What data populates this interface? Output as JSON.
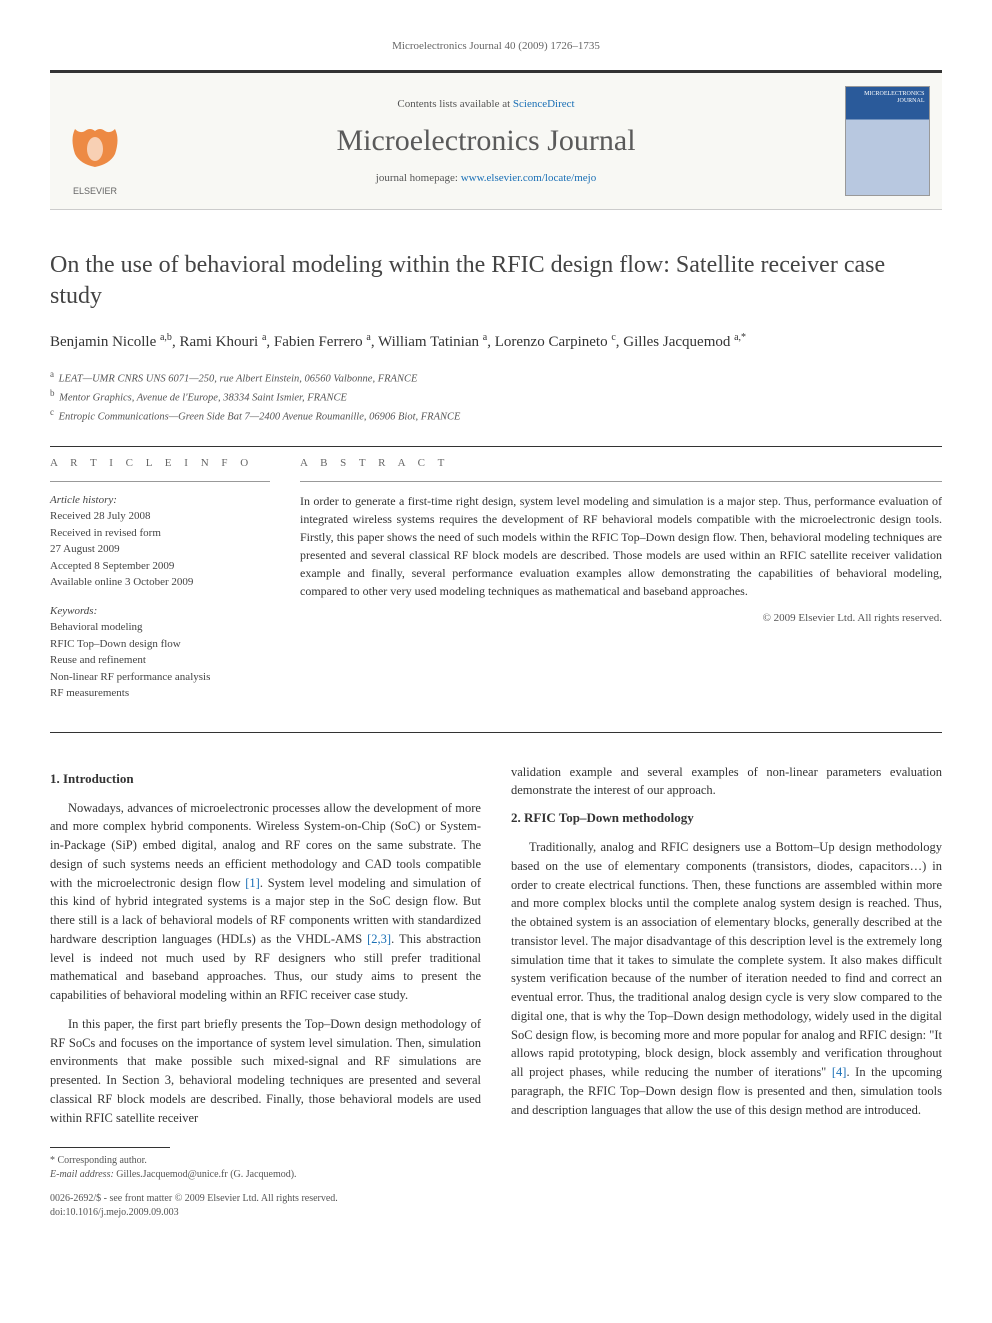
{
  "running_head": "Microelectronics Journal 40 (2009) 1726–1735",
  "banner": {
    "contents_prefix": "Contents lists available at ",
    "contents_link": "ScienceDirect",
    "journal_name": "Microelectronics Journal",
    "homepage_prefix": "journal homepage: ",
    "homepage_link": "www.elsevier.com/locate/mejo",
    "cover_label": "MICROELECTRONICS JOURNAL"
  },
  "title": "On the use of behavioral modeling within the RFIC design flow: Satellite receiver case study",
  "authors_html": "Benjamin Nicolle <sup>a,b</sup>, Rami Khouri <sup>a</sup>, Fabien Ferrero <sup>a</sup>, William Tatinian <sup>a</sup>, Lorenzo Carpineto <sup>c</sup>, Gilles Jacquemod <sup>a,*</sup>",
  "affiliations": [
    {
      "sup": "a",
      "text": "LEAT—UMR CNRS UNS 6071—250, rue Albert Einstein, 06560 Valbonne, FRANCE"
    },
    {
      "sup": "b",
      "text": "Mentor Graphics, Avenue de l'Europe, 38334 Saint Ismier, FRANCE"
    },
    {
      "sup": "c",
      "text": "Entropic Communications—Green Side Bat 7—2400 Avenue Roumanille, 06906 Biot, FRANCE"
    }
  ],
  "info": {
    "label": "A R T I C L E  I N F O",
    "history_label": "Article history:",
    "history": [
      "Received 28 July 2008",
      "Received in revised form",
      "27 August 2009",
      "Accepted 8 September 2009",
      "Available online 3 October 2009"
    ],
    "keywords_label": "Keywords:",
    "keywords": [
      "Behavioral modeling",
      "RFIC Top–Down design flow",
      "Reuse and refinement",
      "Non-linear RF performance analysis",
      "RF measurements"
    ]
  },
  "abstract": {
    "label": "A B S T R A C T",
    "text": "In order to generate a first-time right design, system level modeling and simulation is a major step. Thus, performance evaluation of integrated wireless systems requires the development of RF behavioral models compatible with the microelectronic design tools. Firstly, this paper shows the need of such models within the RFIC Top–Down design flow. Then, behavioral modeling techniques are presented and several classical RF block models are described. Those models are used within an RFIC satellite receiver validation example and finally, several performance evaluation examples allow demonstrating the capabilities of behavioral modeling, compared to other very used modeling techniques as mathematical and baseband approaches.",
    "copyright": "© 2009 Elsevier Ltd. All rights reserved."
  },
  "body": {
    "left": {
      "h1": "1. Introduction",
      "p1": "Nowadays, advances of microelectronic processes allow the development of more and more complex hybrid components. Wireless System-on-Chip (SoC) or System-in-Package (SiP) embed digital, analog and RF cores on the same substrate. The design of such systems needs an efficient methodology and CAD tools compatible with the microelectronic design flow [1]. System level modeling and simulation of this kind of hybrid integrated systems is a major step in the SoC design flow. But there still is a lack of behavioral models of RF components written with standardized hardware description languages (HDLs) as the VHDL-AMS [2,3]. This abstraction level is indeed not much used by RF designers who still prefer traditional mathematical and baseband approaches. Thus, our study aims to present the capabilities of behavioral modeling within an RFIC receiver case study.",
      "p2": "In this paper, the first part briefly presents the Top–Down design methodology of RF SoCs and focuses on the importance of system level simulation. Then, simulation environments that make possible such mixed-signal and RF simulations are presented. In Section 3, behavioral modeling techniques are presented and several classical RF block models are described. Finally, those behavioral models are used within RFIC satellite receiver",
      "ref1": "[1]",
      "ref23": "[2,3]"
    },
    "right": {
      "p0": "validation example and several examples of non-linear parameters evaluation demonstrate the interest of our approach.",
      "h2": "2. RFIC Top–Down methodology",
      "p1": "Traditionally, analog and RFIC designers use a Bottom–Up design methodology based on the use of elementary components (transistors, diodes, capacitors…) in order to create electrical functions. Then, these functions are assembled within more and more complex blocks until the complete analog system design is reached. Thus, the obtained system is an association of elementary blocks, generally described at the transistor level. The major disadvantage of this description level is the extremely long simulation time that it takes to simulate the complete system. It also makes difficult system verification because of the number of iteration needed to find and correct an eventual error. Thus, the traditional analog design cycle is very slow compared to the digital one, that is why the Top–Down design methodology, widely used in the digital SoC design flow, is becoming more and more popular for analog and RFIC design: \"It allows rapid prototyping, block design, block assembly and verification throughout all project phases, while reducing the number of iterations\" [4]. In the upcoming paragraph, the RFIC Top–Down design flow is presented and then, simulation tools and description languages that allow the use of this design method are introduced.",
      "ref4": "[4]"
    }
  },
  "footnote": {
    "corr": "* Corresponding author.",
    "email_label": "E-mail address:",
    "email": "Gilles.Jacquemod@unice.fr (G. Jacquemod)."
  },
  "doi": {
    "line1": "0026-2692/$ - see front matter © 2009 Elsevier Ltd. All rights reserved.",
    "line2": "doi:10.1016/j.mejo.2009.09.003"
  },
  "colors": {
    "link": "#1a6fb5",
    "orange": "#eb7724",
    "banner_bg": "#f8f8f4",
    "cover_top": "#2a5a9a"
  }
}
